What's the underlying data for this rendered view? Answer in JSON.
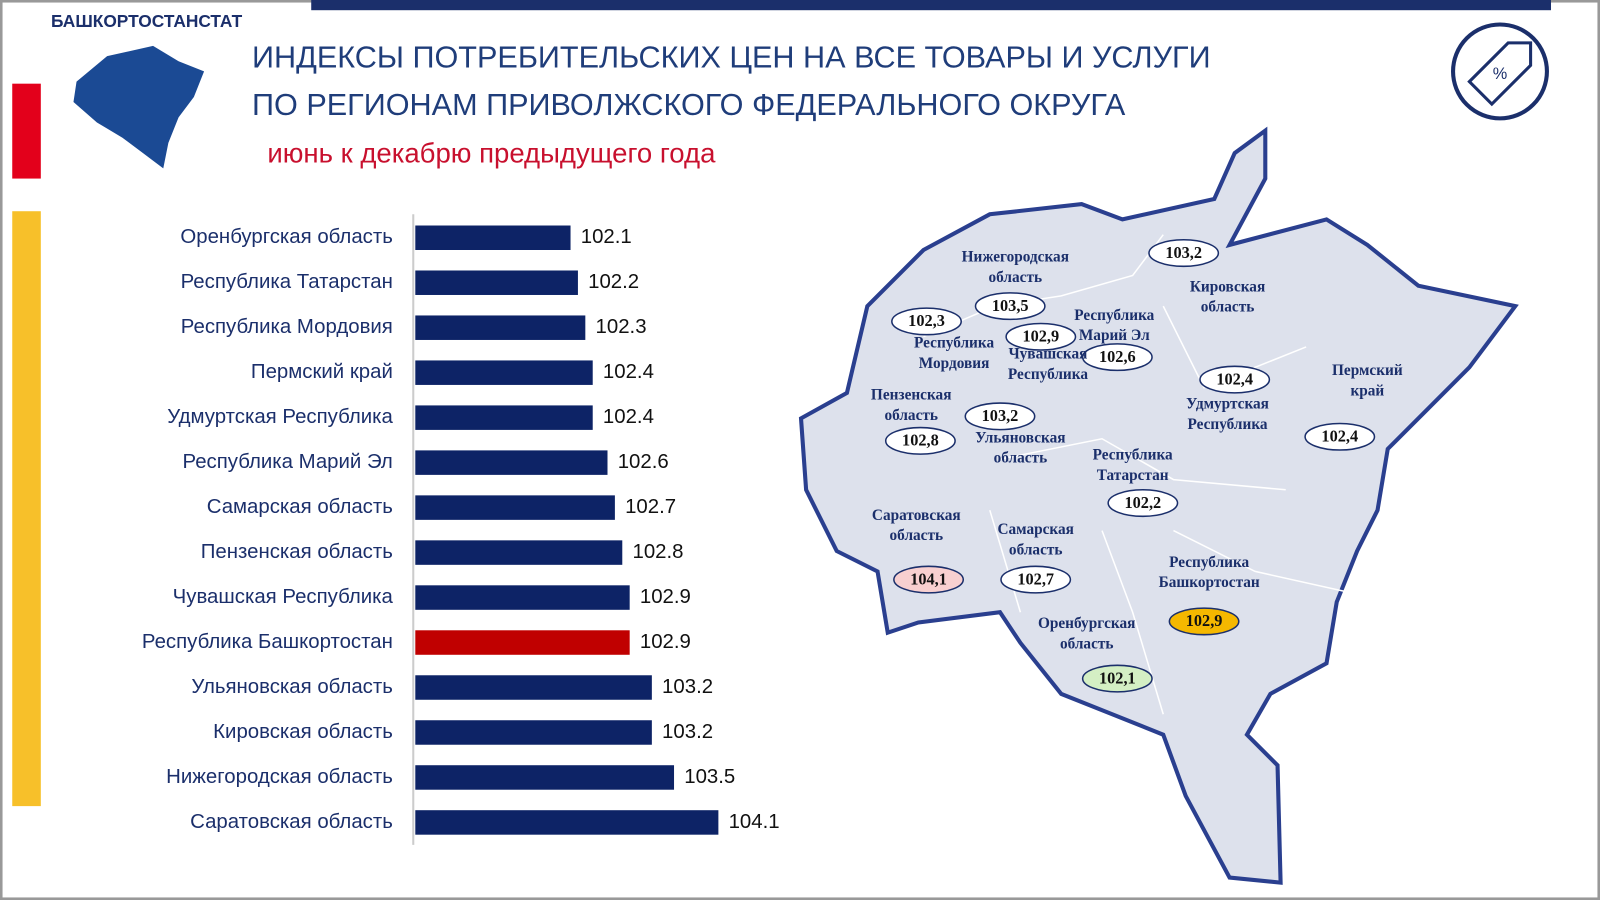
{
  "header": {
    "org": "БАШКОРТОСТАНСТАТ",
    "title_lines": [
      "ИНДЕКСЫ ПОТРЕБИТЕЛЬСКИХ ЦЕН НА ВСЕ ТОВАРЫ И УСЛУГИ",
      "ПО РЕГИОНАМ ПРИВОЛЖСКОГО ФЕДЕРАЛЬНОГО ОКРУГА"
    ],
    "subtitle": "июнь к декабрю предыдущего года"
  },
  "chart_data": {
    "type": "hbar",
    "categories": [
      "Оренбургская область",
      "Республика Татарстан",
      "Республика Мордовия",
      "Пермский край",
      "Удмуртская Республика",
      "Республика Марий Эл",
      "Самарская область",
      "Пензенская область",
      "Чувашская Республика",
      "Республика Башкортостан",
      "Ульяновская область",
      "Кировская область",
      "Нижегородская область",
      "Саратовская область"
    ],
    "values": [
      102.1,
      102.2,
      102.3,
      102.4,
      102.4,
      102.6,
      102.7,
      102.8,
      102.9,
      102.9,
      103.2,
      103.2,
      103.5,
      104.1
    ],
    "colors": [
      "#0d2366",
      "#0d2366",
      "#0d2366",
      "#0d2366",
      "#0d2366",
      "#0d2366",
      "#0d2366",
      "#0d2366",
      "#0d2366",
      "#c00000",
      "#0d2366",
      "#0d2366",
      "#0d2366",
      "#0d2366"
    ],
    "xlim": [
      100,
      104.5
    ]
  },
  "map": {
    "regions": [
      {
        "name_lines": [
          "Нижегородская",
          "область"
        ],
        "value": "103,5",
        "fill": "#ffffff"
      },
      {
        "name_lines": [
          "Кировская",
          "область"
        ],
        "value": "103,2",
        "fill": "#ffffff"
      },
      {
        "name_lines": [
          "Республика",
          "Марий Эл"
        ],
        "value": "102,6",
        "fill": "#ffffff"
      },
      {
        "name_lines": [
          "Чувашская",
          "Республика"
        ],
        "value": "102,9",
        "fill": "#ffffff"
      },
      {
        "name_lines": [
          "Республика",
          "Мордовия"
        ],
        "value": "102,3",
        "fill": "#ffffff"
      },
      {
        "name_lines": [
          "Пензенская",
          "область"
        ],
        "value": "102,8",
        "fill": "#ffffff"
      },
      {
        "name_lines": [
          "Ульяновская",
          "область"
        ],
        "value": "103,2",
        "fill": "#ffffff"
      },
      {
        "name_lines": [
          "Удмуртская",
          "Республика"
        ],
        "value": "102,4",
        "fill": "#ffffff"
      },
      {
        "name_lines": [
          "Пермский",
          "край"
        ],
        "value": "102,4",
        "fill": "#ffffff"
      },
      {
        "name_lines": [
          "Республика",
          "Татарстан"
        ],
        "value": "102,2",
        "fill": "#ffffff"
      },
      {
        "name_lines": [
          "Саратовская",
          "область"
        ],
        "value": "104,1",
        "fill": "#f8d0d0"
      },
      {
        "name_lines": [
          "Самарская",
          "область"
        ],
        "value": "102,7",
        "fill": "#ffffff"
      },
      {
        "name_lines": [
          "Республика",
          "Башкортостан"
        ],
        "value": "102,9",
        "fill": "#f5b800"
      },
      {
        "name_lines": [
          "Оренбургская",
          "область"
        ],
        "value": "102,1",
        "fill": "#d4efc4"
      }
    ]
  }
}
